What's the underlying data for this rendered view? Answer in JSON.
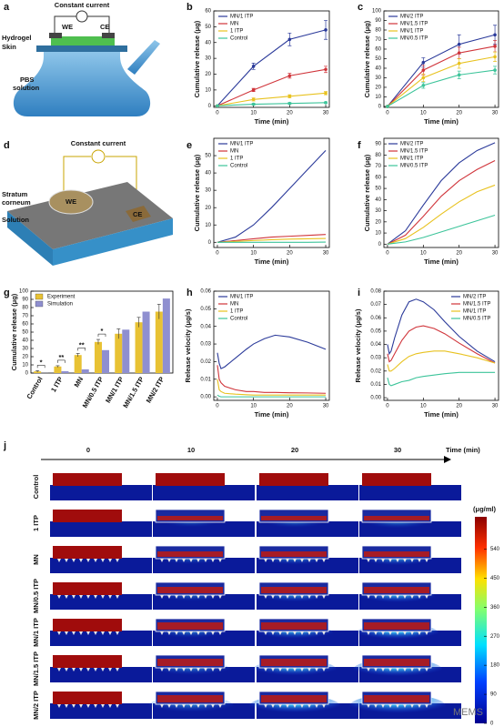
{
  "chart_data": [
    {
      "type": "line",
      "panel": "b",
      "xlabel": "Time (min)",
      "ylabel": "Cumulative release (μg)",
      "x": [
        0,
        10,
        20,
        30
      ],
      "xlim": [
        -1,
        31
      ],
      "xticks": [
        0,
        10,
        20,
        30
      ],
      "ylim": [
        -1,
        60
      ],
      "yticks": [
        0,
        10,
        20,
        30,
        40,
        50,
        60
      ],
      "markers": true,
      "legend": "upper left",
      "series": [
        {
          "name": "MN/1 ITP",
          "color": "#2b3a9a",
          "values": [
            0,
            25,
            42,
            48
          ],
          "errors": [
            0,
            2,
            4,
            6
          ]
        },
        {
          "name": "MN",
          "color": "#d0343a",
          "values": [
            0,
            10,
            19,
            23
          ],
          "errors": [
            0,
            1,
            1.5,
            2
          ]
        },
        {
          "name": "1 ITP",
          "color": "#e8c21f",
          "values": [
            0,
            4,
            6,
            8
          ],
          "errors": [
            0,
            1,
            1,
            1
          ]
        },
        {
          "name": "Control",
          "color": "#3cc49a",
          "values": [
            0,
            1,
            1.5,
            2
          ],
          "errors": [
            0,
            0.5,
            0.5,
            0.5
          ]
        }
      ]
    },
    {
      "type": "line",
      "panel": "c",
      "xlabel": "Time (min)",
      "ylabel": "Cumulative release (μg)",
      "x": [
        0,
        10,
        20,
        30
      ],
      "xlim": [
        -1,
        31
      ],
      "xticks": [
        0,
        10,
        20,
        30
      ],
      "ylim": [
        -1,
        100
      ],
      "yticks": [
        0,
        10,
        20,
        30,
        40,
        50,
        60,
        70,
        80,
        90,
        100
      ],
      "markers": true,
      "legend": "upper left",
      "series": [
        {
          "name": "MN/2 ITP",
          "color": "#2b3a9a",
          "values": [
            0,
            46,
            65,
            75
          ],
          "errors": [
            0,
            5,
            10,
            10
          ]
        },
        {
          "name": "MN/1.5 ITP",
          "color": "#d0343a",
          "values": [
            0,
            38,
            56,
            63
          ],
          "errors": [
            0,
            5,
            6,
            6
          ]
        },
        {
          "name": "MN/1 ITP",
          "color": "#e8c21f",
          "values": [
            0,
            30,
            45,
            52
          ],
          "errors": [
            0,
            4,
            5,
            5
          ]
        },
        {
          "name": "MN/0.5 ITP",
          "color": "#3cc49a",
          "values": [
            0,
            22,
            33,
            38
          ],
          "errors": [
            0,
            3,
            4,
            4
          ]
        }
      ]
    },
    {
      "type": "line",
      "panel": "e",
      "xlabel": "Time (min)",
      "ylabel": "Cumulative release (μg)",
      "x": [
        0,
        5,
        10,
        15,
        20,
        25,
        30
      ],
      "xlim": [
        -1,
        31
      ],
      "xticks": [
        0,
        10,
        20,
        30
      ],
      "ylim": [
        -3,
        60
      ],
      "yticks": [
        0,
        10,
        20,
        30,
        40,
        50
      ],
      "markers": false,
      "legend": "upper left",
      "series": [
        {
          "name": "MN/1 ITP",
          "color": "#2b3a9a",
          "values": [
            0,
            3,
            10,
            20,
            31,
            42,
            53
          ]
        },
        {
          "name": "MN",
          "color": "#d0343a",
          "values": [
            0,
            1,
            2,
            3,
            3.5,
            4,
            4.5
          ]
        },
        {
          "name": "1 ITP",
          "color": "#e8c21f",
          "values": [
            0,
            0.5,
            1,
            1.5,
            1.8,
            2,
            2.2
          ]
        },
        {
          "name": "Control",
          "color": "#3cc49a",
          "values": [
            0,
            0,
            0,
            0,
            0,
            0,
            0.1
          ]
        }
      ]
    },
    {
      "type": "line",
      "panel": "f",
      "xlabel": "Time (min)",
      "ylabel": "Cumulative release (μg)",
      "x": [
        0,
        5,
        10,
        15,
        20,
        25,
        30
      ],
      "xlim": [
        -1,
        31
      ],
      "xticks": [
        0,
        10,
        20,
        30
      ],
      "ylim": [
        -3,
        95
      ],
      "yticks": [
        0,
        10,
        20,
        30,
        40,
        50,
        60,
        70,
        80,
        90
      ],
      "markers": false,
      "legend": "upper left",
      "series": [
        {
          "name": "MN/2 ITP",
          "color": "#2b3a9a",
          "values": [
            0,
            12,
            35,
            57,
            73,
            84,
            91
          ]
        },
        {
          "name": "MN/1.5 ITP",
          "color": "#d0343a",
          "values": [
            0,
            8,
            25,
            43,
            57,
            67,
            75
          ]
        },
        {
          "name": "MN/1 ITP",
          "color": "#e8c21f",
          "values": [
            0,
            5,
            15,
            27,
            38,
            47,
            53
          ]
        },
        {
          "name": "MN/0.5 ITP",
          "color": "#3cc49a",
          "values": [
            0,
            2,
            6,
            11,
            16,
            21,
            26
          ]
        }
      ]
    },
    {
      "type": "bar",
      "panel": "g",
      "ylabel": "Cumulative release (μg)",
      "categories": [
        "Control",
        "1 ITP",
        "MN",
        "MN/0.5 ITP",
        "MN/1 ITP",
        "MN/1.5 ITP",
        "MN/2 ITP"
      ],
      "ylim": [
        0,
        100
      ],
      "yticks": [
        0,
        10,
        20,
        30,
        40,
        50,
        60,
        70,
        80,
        90,
        100
      ],
      "legend": "upper left",
      "annotations": [
        "*",
        "**",
        "**",
        "*"
      ],
      "series": [
        {
          "name": "Experiment",
          "color": "#e8c234",
          "values": [
            2,
            8,
            22,
            38,
            48,
            62,
            75
          ],
          "errors": [
            1,
            1,
            2,
            3,
            6,
            6,
            9
          ]
        },
        {
          "name": "Simulation",
          "color": "#8f8fd0",
          "values": [
            0.1,
            2.2,
            4.5,
            28,
            53,
            75,
            91
          ]
        }
      ]
    },
    {
      "type": "line",
      "panel": "h",
      "xlabel": "Time (min)",
      "ylabel": "Release velocity (μg/s)",
      "x": [
        0,
        0.5,
        1,
        2,
        5,
        8,
        10,
        13,
        16,
        20,
        25,
        30
      ],
      "xlim": [
        -1,
        31
      ],
      "xticks": [
        0,
        10,
        20,
        30
      ],
      "ylim": [
        -0.002,
        0.06
      ],
      "yticks": [
        {
          "value": 0,
          "label": "0.00"
        },
        {
          "value": 0.01,
          "label": "0.01"
        },
        {
          "value": 0.02,
          "label": "0.02"
        },
        {
          "value": 0.03,
          "label": "0.03"
        },
        {
          "value": 0.04,
          "label": "0.04"
        },
        {
          "value": 0.05,
          "label": "0.05"
        },
        {
          "value": 0.06,
          "label": "0.06"
        }
      ],
      "markers": false,
      "legend": "upper left",
      "series": [
        {
          "name": "MN/1 ITP",
          "color": "#2b3a9a",
          "values": [
            0.025,
            0.019,
            0.016,
            0.017,
            0.022,
            0.027,
            0.03,
            0.033,
            0.035,
            0.034,
            0.031,
            0.027
          ]
        },
        {
          "name": "MN",
          "color": "#d0343a",
          "values": [
            0.018,
            0.01,
            0.008,
            0.006,
            0.004,
            0.003,
            0.003,
            0.0025,
            0.0025,
            0.0023,
            0.0022,
            0.002
          ]
        },
        {
          "name": "1 ITP",
          "color": "#e8c21f",
          "values": [
            0.01,
            0.004,
            0.003,
            0.002,
            0.0015,
            0.0012,
            0.001,
            0.001,
            0.001,
            0.001,
            0.001,
            0.001
          ]
        },
        {
          "name": "Control",
          "color": "#3cc49a",
          "values": [
            0.001,
            0.0003,
            0,
            0,
            0,
            0,
            0,
            0,
            0,
            0,
            0,
            0
          ]
        }
      ]
    },
    {
      "type": "line",
      "panel": "i",
      "xlabel": "Time (min)",
      "ylabel": "Release velocity (μg/s)",
      "x": [
        0,
        0.5,
        1,
        2,
        4,
        6,
        8,
        10,
        13,
        16,
        20,
        25,
        30
      ],
      "xlim": [
        -1,
        31
      ],
      "xticks": [
        0,
        10,
        20,
        30
      ],
      "ylim": [
        -0.002,
        0.08
      ],
      "yticks": [
        {
          "value": 0,
          "label": "0.00"
        },
        {
          "value": 0.01,
          "label": "0.01"
        },
        {
          "value": 0.02,
          "label": "0.02"
        },
        {
          "value": 0.03,
          "label": "0.03"
        },
        {
          "value": 0.04,
          "label": "0.04"
        },
        {
          "value": 0.05,
          "label": "0.05"
        },
        {
          "value": 0.06,
          "label": "0.06"
        },
        {
          "value": 0.07,
          "label": "0.07"
        },
        {
          "value": 0.08,
          "label": "0.08"
        }
      ],
      "markers": false,
      "legend": "upper right",
      "series": [
        {
          "name": "MN/2 ITP",
          "color": "#2b3a9a",
          "values": [
            0.04,
            0.033,
            0.035,
            0.045,
            0.062,
            0.072,
            0.074,
            0.072,
            0.066,
            0.057,
            0.046,
            0.035,
            0.027
          ]
        },
        {
          "name": "MN/1.5 ITP",
          "color": "#d0343a",
          "values": [
            0.033,
            0.027,
            0.028,
            0.033,
            0.043,
            0.05,
            0.053,
            0.054,
            0.052,
            0.048,
            0.041,
            0.033,
            0.026
          ]
        },
        {
          "name": "MN/1 ITP",
          "color": "#e8c21f",
          "values": [
            0.025,
            0.02,
            0.02,
            0.022,
            0.027,
            0.031,
            0.033,
            0.034,
            0.035,
            0.035,
            0.033,
            0.03,
            0.026
          ]
        },
        {
          "name": "MN/0.5 ITP",
          "color": "#3cc49a",
          "values": [
            0.015,
            0.01,
            0.009,
            0.01,
            0.012,
            0.013,
            0.015,
            0.016,
            0.017,
            0.018,
            0.019,
            0.019,
            0.019
          ]
        }
      ]
    }
  ],
  "diagram_a": {
    "panel": "a",
    "constant_current": "Constant current",
    "we": "WE",
    "ce": "CE",
    "hydrogel": "Hydrogel",
    "skin": "Skin",
    "pbs_solution": [
      "PBS",
      "solution"
    ]
  },
  "diagram_d": {
    "panel": "d",
    "constant_current": "Constant current",
    "stratum_corneum": [
      "Stratum",
      "corneum"
    ],
    "solution": "Solution",
    "we": "WE",
    "ce": "CE"
  },
  "heatmap_j": {
    "panel": "j",
    "times": [
      "0",
      "10",
      "20",
      "30"
    ],
    "time_label": "Time (min)",
    "rows": [
      "Control",
      "1 ITP",
      "MN",
      "MN/0.5 ITP",
      "MN/1 ITP",
      "MN/1.5 ITP",
      "MN/2 ITP"
    ],
    "colorbar": {
      "label": "(μg/ml)",
      "lim": [
        0,
        640
      ],
      "ticks": [
        0,
        90,
        180,
        270,
        360,
        450,
        540
      ]
    }
  },
  "watermark": "MEMS"
}
